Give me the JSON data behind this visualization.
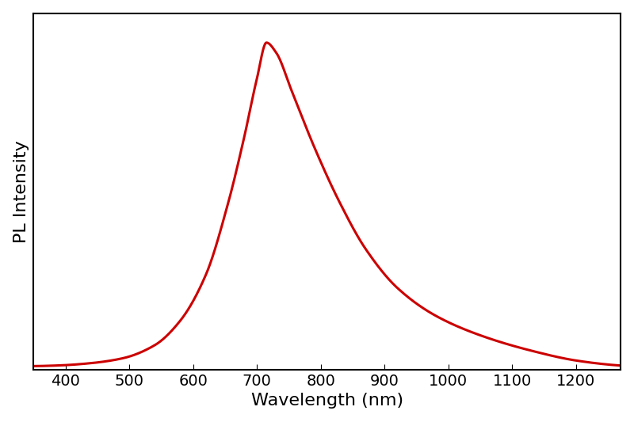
{
  "title": "",
  "xlabel": "Wavelength (nm)",
  "ylabel": "PL Intensity",
  "line_color": "#cc0000",
  "line_width": 2.2,
  "xlim": [
    350,
    1270
  ],
  "ylim": [
    -0.01,
    1.08
  ],
  "xticks": [
    400,
    500,
    600,
    700,
    800,
    900,
    1000,
    1100,
    1200
  ],
  "background_color": "#ffffff",
  "xlabel_fontsize": 16,
  "ylabel_fontsize": 16,
  "tick_fontsize": 14,
  "control_points_x": [
    350,
    390,
    440,
    490,
    540,
    580,
    620,
    655,
    680,
    700,
    715,
    730,
    755,
    790,
    830,
    870,
    920,
    980,
    1050,
    1130,
    1200,
    1260,
    1275
  ],
  "control_points_y": [
    0.001,
    0.003,
    0.01,
    0.025,
    0.065,
    0.14,
    0.28,
    0.5,
    0.7,
    0.88,
    0.99,
    0.96,
    0.84,
    0.67,
    0.5,
    0.36,
    0.24,
    0.155,
    0.095,
    0.048,
    0.018,
    0.004,
    0.002
  ]
}
